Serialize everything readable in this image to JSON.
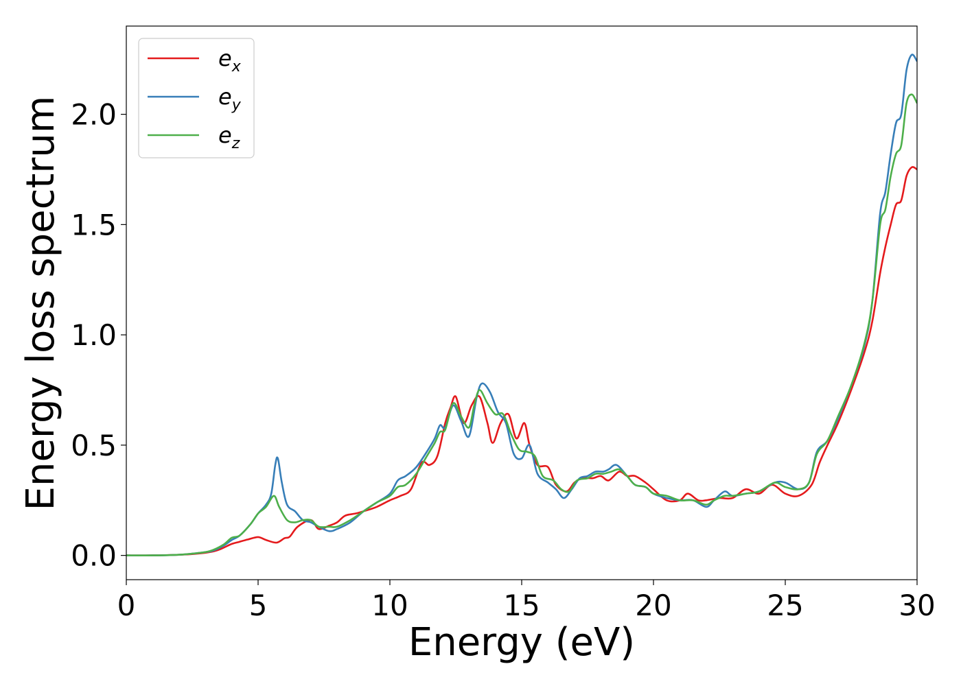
{
  "chart_data": {
    "type": "line",
    "title": "",
    "xlabel": "Energy (eV)",
    "ylabel": "Energy loss spectrum",
    "xlim": [
      0,
      30
    ],
    "ylim": [
      -0.11,
      2.4
    ],
    "xticks": [
      0,
      5,
      10,
      15,
      20,
      25,
      30
    ],
    "xtick_labels": [
      "0",
      "5",
      "10",
      "15",
      "20",
      "25",
      "30"
    ],
    "yticks": [
      0.0,
      0.5,
      1.0,
      1.5,
      2.0
    ],
    "ytick_labels": [
      "0.0",
      "0.5",
      "1.0",
      "1.5",
      "2.0"
    ],
    "grid": false,
    "legend_position": "top-left",
    "series": [
      {
        "name": "e_x",
        "legend_base": "e",
        "legend_sub": "x",
        "color": "#e41a1c",
        "points": [
          [
            0,
            0
          ],
          [
            1,
            0.0
          ],
          [
            2,
            0.003
          ],
          [
            2.5,
            0.006
          ],
          [
            3,
            0.012
          ],
          [
            3.3,
            0.018
          ],
          [
            3.6,
            0.03
          ],
          [
            4.0,
            0.052
          ],
          [
            4.3,
            0.062
          ],
          [
            4.6,
            0.072
          ],
          [
            5.0,
            0.083
          ],
          [
            5.3,
            0.07
          ],
          [
            5.7,
            0.058
          ],
          [
            6.0,
            0.078
          ],
          [
            6.2,
            0.085
          ],
          [
            6.5,
            0.13
          ],
          [
            7.0,
            0.16
          ],
          [
            7.3,
            0.12
          ],
          [
            7.7,
            0.135
          ],
          [
            8.0,
            0.15
          ],
          [
            8.3,
            0.18
          ],
          [
            8.7,
            0.19
          ],
          [
            9.0,
            0.2
          ],
          [
            9.5,
            0.22
          ],
          [
            10.0,
            0.25
          ],
          [
            10.4,
            0.27
          ],
          [
            10.8,
            0.3
          ],
          [
            11.2,
            0.42
          ],
          [
            11.5,
            0.41
          ],
          [
            11.8,
            0.45
          ],
          [
            12.1,
            0.6
          ],
          [
            12.3,
            0.67
          ],
          [
            12.5,
            0.72
          ],
          [
            12.8,
            0.6
          ],
          [
            13.1,
            0.68
          ],
          [
            13.4,
            0.72
          ],
          [
            13.7,
            0.6
          ],
          [
            13.9,
            0.51
          ],
          [
            14.2,
            0.6
          ],
          [
            14.5,
            0.64
          ],
          [
            14.8,
            0.53
          ],
          [
            15.1,
            0.6
          ],
          [
            15.3,
            0.5
          ],
          [
            15.6,
            0.41
          ],
          [
            16.0,
            0.4
          ],
          [
            16.3,
            0.32
          ],
          [
            16.7,
            0.29
          ],
          [
            17.0,
            0.33
          ],
          [
            17.3,
            0.35
          ],
          [
            17.7,
            0.35
          ],
          [
            18.0,
            0.36
          ],
          [
            18.3,
            0.34
          ],
          [
            18.7,
            0.38
          ],
          [
            19.0,
            0.36
          ],
          [
            19.3,
            0.36
          ],
          [
            19.7,
            0.33
          ],
          [
            20.0,
            0.3
          ],
          [
            20.5,
            0.25
          ],
          [
            21.0,
            0.25
          ],
          [
            21.3,
            0.28
          ],
          [
            21.7,
            0.25
          ],
          [
            22.0,
            0.25
          ],
          [
            22.5,
            0.26
          ],
          [
            23.0,
            0.26
          ],
          [
            23.5,
            0.3
          ],
          [
            24.0,
            0.28
          ],
          [
            24.5,
            0.32
          ],
          [
            25.0,
            0.28
          ],
          [
            25.5,
            0.27
          ],
          [
            26.0,
            0.32
          ],
          [
            26.3,
            0.42
          ],
          [
            26.6,
            0.5
          ],
          [
            27.0,
            0.6
          ],
          [
            27.5,
            0.75
          ],
          [
            28.0,
            0.92
          ],
          [
            28.3,
            1.06
          ],
          [
            28.6,
            1.28
          ],
          [
            28.8,
            1.4
          ],
          [
            29.0,
            1.5
          ],
          [
            29.2,
            1.59
          ],
          [
            29.4,
            1.61
          ],
          [
            29.6,
            1.72
          ],
          [
            29.8,
            1.76
          ],
          [
            30.0,
            1.75
          ]
        ]
      },
      {
        "name": "e_y",
        "legend_base": "e",
        "legend_sub": "y",
        "color": "#377eb8",
        "points": [
          [
            0,
            0
          ],
          [
            1,
            0.0
          ],
          [
            2,
            0.003
          ],
          [
            2.5,
            0.008
          ],
          [
            3,
            0.015
          ],
          [
            3.3,
            0.022
          ],
          [
            3.7,
            0.045
          ],
          [
            4.0,
            0.07
          ],
          [
            4.3,
            0.09
          ],
          [
            4.7,
            0.14
          ],
          [
            5.0,
            0.19
          ],
          [
            5.3,
            0.23
          ],
          [
            5.5,
            0.28
          ],
          [
            5.65,
            0.41
          ],
          [
            5.75,
            0.44
          ],
          [
            5.9,
            0.33
          ],
          [
            6.1,
            0.23
          ],
          [
            6.4,
            0.2
          ],
          [
            6.7,
            0.16
          ],
          [
            7.0,
            0.15
          ],
          [
            7.3,
            0.13
          ],
          [
            7.7,
            0.11
          ],
          [
            8.0,
            0.12
          ],
          [
            8.5,
            0.15
          ],
          [
            9.0,
            0.2
          ],
          [
            9.5,
            0.24
          ],
          [
            10.0,
            0.28
          ],
          [
            10.3,
            0.34
          ],
          [
            10.6,
            0.36
          ],
          [
            11.0,
            0.4
          ],
          [
            11.4,
            0.47
          ],
          [
            11.7,
            0.53
          ],
          [
            11.9,
            0.59
          ],
          [
            12.1,
            0.58
          ],
          [
            12.4,
            0.68
          ],
          [
            12.7,
            0.61
          ],
          [
            13.0,
            0.54
          ],
          [
            13.3,
            0.72
          ],
          [
            13.5,
            0.78
          ],
          [
            13.8,
            0.74
          ],
          [
            14.1,
            0.65
          ],
          [
            14.4,
            0.6
          ],
          [
            14.7,
            0.46
          ],
          [
            15.0,
            0.44
          ],
          [
            15.3,
            0.5
          ],
          [
            15.6,
            0.37
          ],
          [
            16.0,
            0.33
          ],
          [
            16.3,
            0.3
          ],
          [
            16.6,
            0.26
          ],
          [
            16.9,
            0.3
          ],
          [
            17.2,
            0.35
          ],
          [
            17.5,
            0.36
          ],
          [
            17.8,
            0.38
          ],
          [
            18.1,
            0.38
          ],
          [
            18.3,
            0.39
          ],
          [
            18.6,
            0.41
          ],
          [
            19.0,
            0.36
          ],
          [
            19.3,
            0.32
          ],
          [
            19.7,
            0.31
          ],
          [
            20.0,
            0.28
          ],
          [
            20.5,
            0.26
          ],
          [
            21.0,
            0.25
          ],
          [
            21.5,
            0.25
          ],
          [
            22.0,
            0.22
          ],
          [
            22.3,
            0.25
          ],
          [
            22.7,
            0.29
          ],
          [
            23.0,
            0.27
          ],
          [
            23.5,
            0.28
          ],
          [
            24.0,
            0.29
          ],
          [
            24.6,
            0.33
          ],
          [
            25.0,
            0.33
          ],
          [
            25.5,
            0.3
          ],
          [
            25.9,
            0.33
          ],
          [
            26.2,
            0.47
          ],
          [
            26.6,
            0.52
          ],
          [
            27.0,
            0.62
          ],
          [
            27.5,
            0.77
          ],
          [
            28.0,
            0.95
          ],
          [
            28.3,
            1.15
          ],
          [
            28.6,
            1.55
          ],
          [
            28.8,
            1.65
          ],
          [
            29.0,
            1.82
          ],
          [
            29.2,
            1.96
          ],
          [
            29.4,
            2.0
          ],
          [
            29.6,
            2.2
          ],
          [
            29.8,
            2.27
          ],
          [
            30.0,
            2.24
          ]
        ]
      },
      {
        "name": "e_z",
        "legend_base": "e",
        "legend_sub": "z",
        "color": "#4daf4a",
        "points": [
          [
            0,
            0
          ],
          [
            1,
            0.0
          ],
          [
            2,
            0.003
          ],
          [
            2.5,
            0.008
          ],
          [
            3,
            0.015
          ],
          [
            3.3,
            0.025
          ],
          [
            3.7,
            0.05
          ],
          [
            4.0,
            0.08
          ],
          [
            4.3,
            0.09
          ],
          [
            4.7,
            0.14
          ],
          [
            5.0,
            0.19
          ],
          [
            5.3,
            0.22
          ],
          [
            5.6,
            0.27
          ],
          [
            5.8,
            0.22
          ],
          [
            6.1,
            0.16
          ],
          [
            6.4,
            0.15
          ],
          [
            6.7,
            0.16
          ],
          [
            7.0,
            0.16
          ],
          [
            7.3,
            0.13
          ],
          [
            7.7,
            0.13
          ],
          [
            8.0,
            0.13
          ],
          [
            8.5,
            0.16
          ],
          [
            9.0,
            0.2
          ],
          [
            9.5,
            0.24
          ],
          [
            10.0,
            0.27
          ],
          [
            10.3,
            0.31
          ],
          [
            10.6,
            0.32
          ],
          [
            11.0,
            0.37
          ],
          [
            11.4,
            0.45
          ],
          [
            11.7,
            0.51
          ],
          [
            11.9,
            0.56
          ],
          [
            12.1,
            0.57
          ],
          [
            12.4,
            0.69
          ],
          [
            12.7,
            0.63
          ],
          [
            13.0,
            0.58
          ],
          [
            13.2,
            0.68
          ],
          [
            13.4,
            0.75
          ],
          [
            13.7,
            0.69
          ],
          [
            14.0,
            0.64
          ],
          [
            14.3,
            0.64
          ],
          [
            14.6,
            0.55
          ],
          [
            14.9,
            0.48
          ],
          [
            15.2,
            0.47
          ],
          [
            15.5,
            0.45
          ],
          [
            15.8,
            0.36
          ],
          [
            16.2,
            0.34
          ],
          [
            16.5,
            0.3
          ],
          [
            16.8,
            0.29
          ],
          [
            17.1,
            0.34
          ],
          [
            17.5,
            0.35
          ],
          [
            17.8,
            0.37
          ],
          [
            18.1,
            0.37
          ],
          [
            18.4,
            0.38
          ],
          [
            18.7,
            0.39
          ],
          [
            19.0,
            0.36
          ],
          [
            19.3,
            0.32
          ],
          [
            19.7,
            0.31
          ],
          [
            20.0,
            0.28
          ],
          [
            20.5,
            0.27
          ],
          [
            21.0,
            0.25
          ],
          [
            21.5,
            0.25
          ],
          [
            22.0,
            0.23
          ],
          [
            22.3,
            0.25
          ],
          [
            22.7,
            0.27
          ],
          [
            23.0,
            0.27
          ],
          [
            23.5,
            0.28
          ],
          [
            24.0,
            0.29
          ],
          [
            24.6,
            0.33
          ],
          [
            25.0,
            0.31
          ],
          [
            25.5,
            0.3
          ],
          [
            25.9,
            0.33
          ],
          [
            26.2,
            0.46
          ],
          [
            26.6,
            0.52
          ],
          [
            27.0,
            0.63
          ],
          [
            27.5,
            0.77
          ],
          [
            28.0,
            0.96
          ],
          [
            28.3,
            1.15
          ],
          [
            28.6,
            1.5
          ],
          [
            28.8,
            1.57
          ],
          [
            29.0,
            1.72
          ],
          [
            29.2,
            1.82
          ],
          [
            29.4,
            1.86
          ],
          [
            29.6,
            2.05
          ],
          [
            29.8,
            2.09
          ],
          [
            30.0,
            2.05
          ]
        ]
      }
    ]
  }
}
